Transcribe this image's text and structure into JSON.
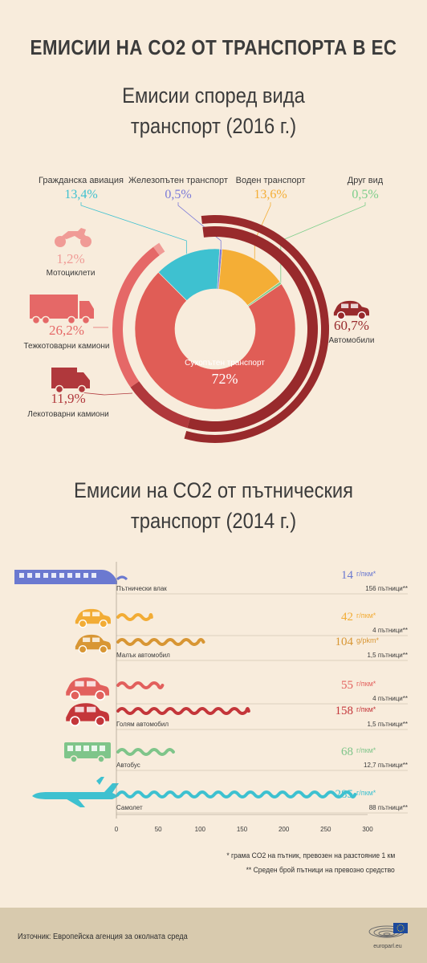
{
  "title": "ЕМИСИИ НА CO2 ОТ ТРАНСПОРТА В ЕС",
  "chart_data": [
    {
      "type": "pie",
      "title": [
        "Емисии според вида",
        "транспорт (2016 г.)"
      ],
      "slices": [
        {
          "label": "Гражданска авиация",
          "value": 13.4,
          "display": "13,4%",
          "color": "#3ec1d0"
        },
        {
          "label": "Железопътен транспорт",
          "value": 0.5,
          "display": "0,5%",
          "color": "#7b7ad8"
        },
        {
          "label": "Воден транспорт",
          "value": 13.6,
          "display": "13,6%",
          "color": "#f4ae36"
        },
        {
          "label": "Друг вид",
          "value": 0.5,
          "display": "0,5%",
          "color": "#7cce8a"
        },
        {
          "label": "Сухопътен транспорт",
          "value": 72,
          "display": "72%",
          "color": "#e05d56"
        }
      ],
      "road_breakdown": [
        {
          "label": "Автомобили",
          "value": 60.7,
          "display": "60,7%",
          "color": "#982a2c"
        },
        {
          "label": "Лекотоварни камиони",
          "value": 11.9,
          "display": "11,9%",
          "color": "#b0383c"
        },
        {
          "label": "Тежкотоварни камиони",
          "value": 26.2,
          "display": "26,2%",
          "color": "#e56867"
        },
        {
          "label": "Мотоциклети",
          "value": 1.2,
          "display": "1,2%",
          "color": "#f09b96"
        }
      ]
    },
    {
      "type": "bar",
      "title": [
        "Емисии на CO2 от пътническия",
        "транспорт (2014 г.)"
      ],
      "xlim": [
        0,
        300
      ],
      "xticks": [
        0,
        50,
        100,
        150,
        200,
        250,
        300
      ],
      "rows": [
        {
          "vehicle": "Пътнически влак",
          "value": 14,
          "value_label": "14",
          "unit": "г/пкм*",
          "passengers": "156 пътници**",
          "color": "#6b79d0"
        },
        {
          "vehicle": "",
          "value": 42,
          "value_label": "42",
          "unit": "г/пкм*",
          "passengers": "4 пътници**",
          "color": "#f2ac35"
        },
        {
          "vehicle": "Малък автомобил",
          "value": 104,
          "value_label": "104",
          "unit": "g/pkm*",
          "passengers": "1,5 пътници**",
          "color": "#d89634"
        },
        {
          "vehicle": "",
          "value": 55,
          "value_label": "55",
          "unit": "г/пкм*",
          "passengers": "4 пътници**",
          "color": "#e2605d"
        },
        {
          "vehicle": "Голям автомобил",
          "value": 158,
          "value_label": "158",
          "unit": "г/пкм*",
          "passengers": "1,5 пътници**",
          "color": "#c4363a"
        },
        {
          "vehicle": "Автобус",
          "value": 68,
          "value_label": "68",
          "unit": "г/пкм*",
          "passengers": "12,7 пътници**",
          "color": "#7fc58a"
        },
        {
          "vehicle": "Самолет",
          "value": 285,
          "value_label": "285",
          "unit": "г/пкм*",
          "passengers": "88 пътници**",
          "color": "#3ec1d0"
        }
      ]
    }
  ],
  "notes": {
    "note1": "* грама CO2 на пътник, превозен на разстояние 1 км",
    "note2": "** Среден брой пътници на превозно средство"
  },
  "footer": {
    "source": "Източник: Европейска агенция за околната среда",
    "logo_text": "europarl.eu"
  }
}
